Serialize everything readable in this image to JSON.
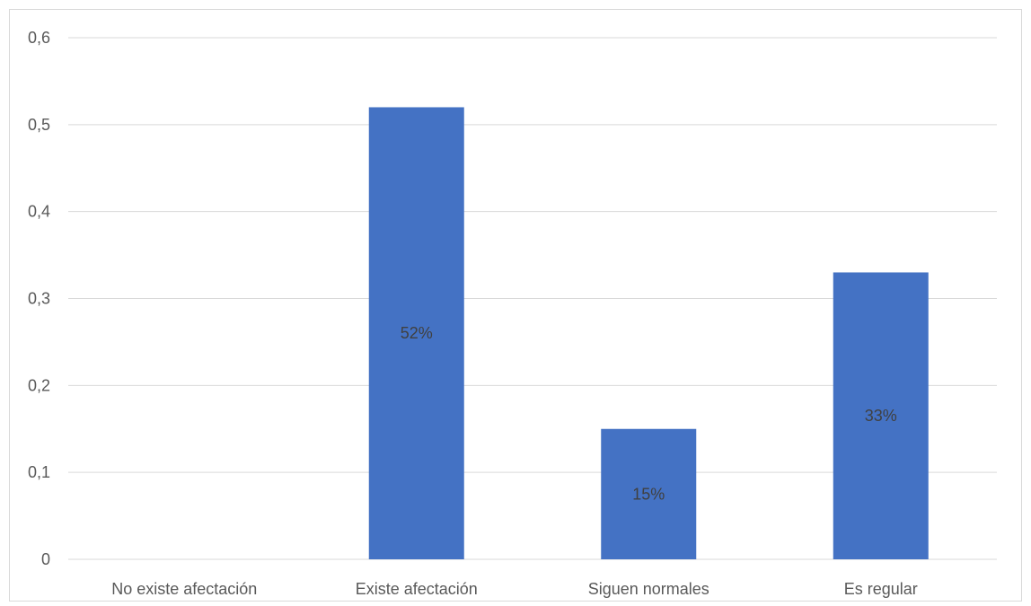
{
  "chart_data": {
    "type": "bar",
    "categories": [
      "No existe afectación",
      "Existe afectación",
      "Siguen normales",
      "Es regular"
    ],
    "values": [
      0,
      0.52,
      0.15,
      0.33
    ],
    "data_labels": [
      "",
      "52%",
      "15%",
      "33%"
    ],
    "yticks": [
      "0",
      "0,1",
      "0,2",
      "0,3",
      "0,4",
      "0,5",
      "0,6"
    ],
    "ylim": [
      0,
      0.6
    ],
    "grid": true,
    "bar_color": "#4472c4",
    "grid_color": "#d9d9d9",
    "text_color": "#595959",
    "label_color": "#404040"
  }
}
